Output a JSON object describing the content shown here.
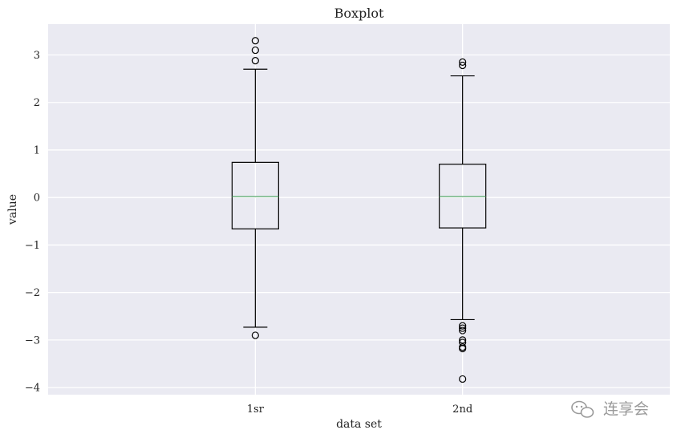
{
  "chart_data": {
    "type": "boxplot",
    "title": "Boxplot",
    "xlabel": "data set",
    "ylabel": "value",
    "ylim": [
      -4.15,
      3.65
    ],
    "yticks": [
      -4,
      -3,
      -2,
      -1,
      0,
      1,
      2,
      3
    ],
    "ytick_labels": [
      "−4",
      "−3",
      "−2",
      "−1",
      "0",
      "1",
      "2",
      "3"
    ],
    "grid": true,
    "categories": [
      "1sr",
      "2nd"
    ],
    "boxes": [
      {
        "label": "1sr",
        "whisker_low": -2.73,
        "q1": -0.66,
        "median": 0.02,
        "q3": 0.74,
        "whisker_high": 2.7,
        "outliers": [
          -2.9,
          2.88,
          3.1,
          3.3
        ]
      },
      {
        "label": "2nd",
        "whisker_low": -2.57,
        "q1": -0.64,
        "median": 0.02,
        "q3": 0.7,
        "whisker_high": 2.56,
        "outliers": [
          -2.7,
          -2.75,
          -2.8,
          -3.0,
          -3.05,
          -3.15,
          -3.18,
          -3.82,
          2.78,
          2.85
        ]
      }
    ],
    "colors": {
      "background": "#eaeaf2",
      "grid": "#ffffff",
      "box": "#000000",
      "median": "#55a868"
    }
  },
  "watermark": {
    "text": "连享会",
    "icon": "wechat-icon"
  }
}
